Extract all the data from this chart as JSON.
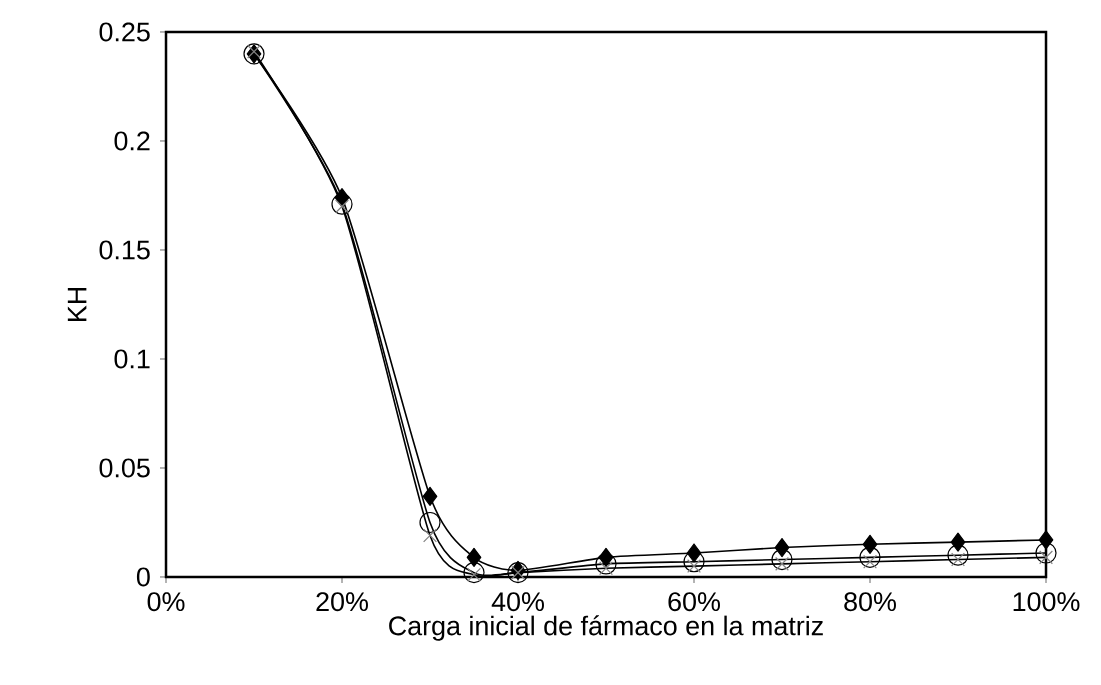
{
  "chart_data": {
    "type": "line",
    "xlabel": "Carga inicial de fármaco en la matriz",
    "ylabel": "KH",
    "x": [
      10,
      20,
      30,
      35,
      40,
      50,
      60,
      70,
      80,
      90,
      100
    ],
    "series": [
      {
        "color": "#000000",
        "marker": "diamond",
        "values": [
          0.24,
          0.174,
          0.037,
          0.009,
          0.003,
          0.009,
          0.011,
          0.0135,
          0.015,
          0.016,
          0.017
        ]
      },
      {
        "color": "#000000",
        "marker": "circle",
        "values": [
          0.24,
          0.171,
          0.025,
          0.002,
          0.002,
          0.006,
          0.007,
          0.008,
          0.009,
          0.01,
          0.011
        ]
      },
      {
        "color": "#808080",
        "marker": "cross",
        "values": [
          0.241,
          0.17,
          0.019,
          0.001,
          0.002,
          0.004,
          0.005,
          0.006,
          0.007,
          0.008,
          0.009
        ]
      }
    ],
    "xlim": [
      0,
      100
    ],
    "ylim": [
      0,
      0.25
    ],
    "xticks": [
      {
        "value": 0,
        "label": "0%"
      },
      {
        "value": 20,
        "label": "20%"
      },
      {
        "value": 40,
        "label": "40%"
      },
      {
        "value": 60,
        "label": "60%"
      },
      {
        "value": 80,
        "label": "80%"
      },
      {
        "value": 100,
        "label": "100%"
      }
    ],
    "yticks": [
      0,
      0.05,
      0.1,
      0.15,
      0.2,
      0.25
    ],
    "line_style": "solid"
  }
}
